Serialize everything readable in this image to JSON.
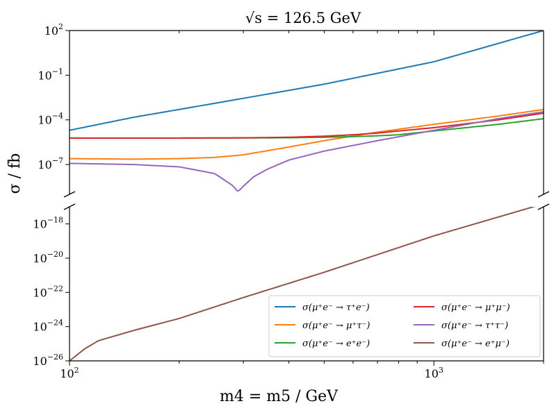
{
  "chart_data": {
    "type": "line",
    "title": "√s = 126.5 GeV",
    "xlabel": "m4 = m5 / GeV",
    "ylabel": "σ / fb",
    "xscale": "log",
    "yscale": "log (broken axis)",
    "xlim": [
      100,
      2000
    ],
    "x_ticks": [
      {
        "base": "10",
        "exp": "2"
      },
      {
        "base": "10",
        "exp": "3"
      }
    ],
    "upper_panel": {
      "ylim": [
        1e-09,
        100
      ],
      "y_ticks": [
        {
          "base": "10",
          "exp": "2"
        },
        {
          "base": "10",
          "exp": "−1"
        },
        {
          "base": "10",
          "exp": "−4"
        },
        {
          "base": "10",
          "exp": "−7"
        }
      ]
    },
    "lower_panel": {
      "ylim": [
        1e-26,
        1e-17
      ],
      "y_ticks": [
        {
          "base": "10",
          "exp": "−18"
        },
        {
          "base": "10",
          "exp": "−20"
        },
        {
          "base": "10",
          "exp": "−22"
        },
        {
          "base": "10",
          "exp": "−24"
        },
        {
          "base": "10",
          "exp": "−26"
        }
      ]
    },
    "legend_position": "bottom-right",
    "series": [
      {
        "name": "σ(μ⁺e⁻ → τ⁺e⁻)",
        "color": "#1f77b4",
        "panel": "upper",
        "x": [
          100,
          150,
          200,
          300,
          500,
          1000,
          2000
        ],
        "y": [
          2e-05,
          0.00015,
          0.0005,
          0.0028,
          0.025,
          0.8,
          100
        ]
      },
      {
        "name": "σ(μ⁺e⁻ → μ⁺τ⁻)",
        "color": "#ff7f0e",
        "panel": "upper",
        "x": [
          100,
          150,
          200,
          250,
          300,
          400,
          500,
          700,
          1000,
          1500,
          2000
        ],
        "y": [
          2.5e-07,
          2.3e-07,
          2.5e-07,
          3e-07,
          4.5e-07,
          1.5e-06,
          4e-06,
          1.5e-05,
          5e-05,
          0.00018,
          0.0005
        ]
      },
      {
        "name": "σ(μ⁺e⁻ → e⁺e⁻)",
        "color": "#2ca02c",
        "panel": "upper",
        "x": [
          100,
          200,
          300,
          400,
          500,
          600,
          700,
          800,
          1000,
          1500,
          2000
        ],
        "y": [
          6e-06,
          6e-06,
          6.1e-06,
          6.3e-06,
          6.8e-06,
          7.5e-06,
          8.5e-06,
          1e-05,
          1.8e-05,
          5e-05,
          0.00012
        ]
      },
      {
        "name": "σ(μ⁺e⁻ → μ⁺μ⁻)",
        "color": "#d62728",
        "panel": "upper",
        "x": [
          100,
          200,
          300,
          400,
          500,
          600,
          700,
          800,
          1000,
          1500,
          2000
        ],
        "y": [
          6e-06,
          6e-06,
          6.2e-06,
          6.8e-06,
          8e-06,
          1e-05,
          1.3e-05,
          1.8e-05,
          3e-05,
          0.0001,
          0.00028
        ]
      },
      {
        "name": "σ(μ⁺e⁻ → τ⁺τ⁻)",
        "color": "#9467bd",
        "panel": "upper",
        "x": [
          100,
          150,
          200,
          250,
          280,
          290,
          300,
          320,
          350,
          400,
          500,
          700,
          1000,
          1500,
          2000
        ],
        "y": [
          1.2e-07,
          1e-07,
          7e-08,
          2.5e-08,
          4e-09,
          1.5e-09,
          3.5e-09,
          1.5e-08,
          5e-08,
          2e-07,
          8e-07,
          4e-06,
          2e-05,
          0.00012,
          0.00035
        ]
      },
      {
        "name": "σ(μ⁺e⁻ → e⁺μ⁻)",
        "color": "#8c564b",
        "panel": "lower",
        "x": [
          100,
          110,
          120,
          150,
          200,
          300,
          500,
          1000,
          2000
        ],
        "y": [
          1e-26,
          5e-26,
          1.5e-25,
          6e-25,
          3e-24,
          5e-23,
          1.5e-21,
          2e-19,
          1.5e-17
        ]
      }
    ]
  }
}
